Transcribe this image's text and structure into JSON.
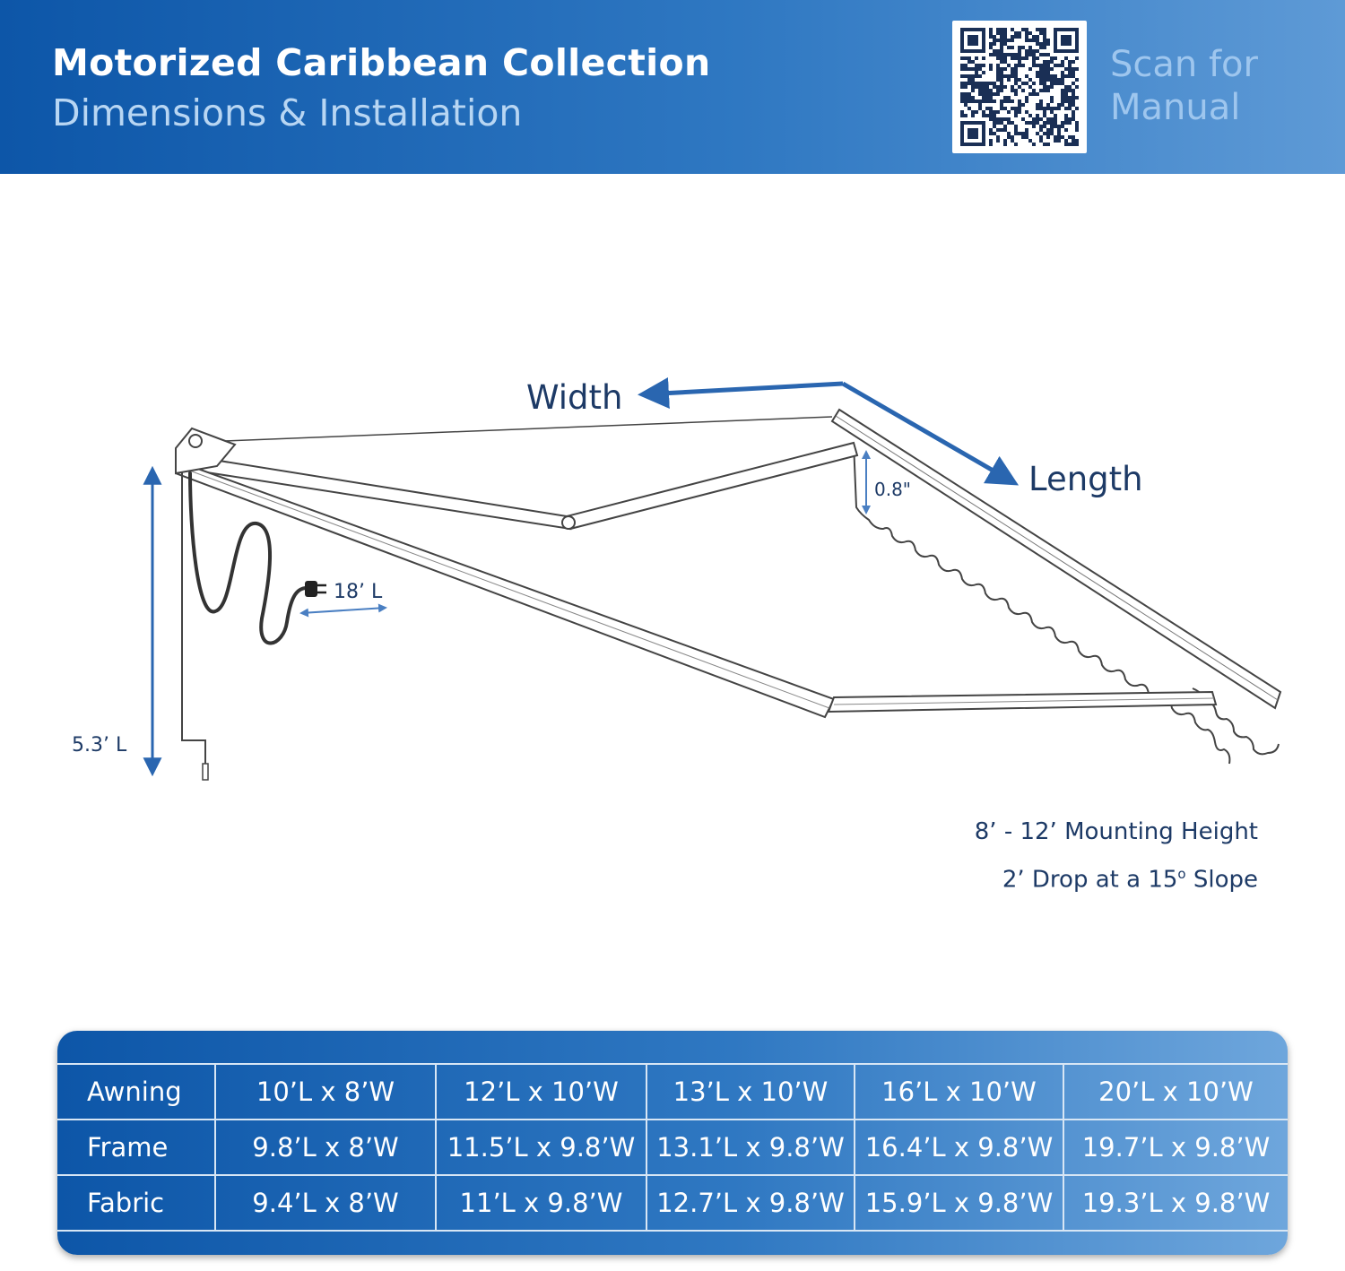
{
  "header": {
    "title": "Motorized Caribbean Collection",
    "subtitle": "Dimensions & Installation",
    "qr_label_line1": "Scan for",
    "qr_label_line2": "Manual",
    "colors": {
      "header_start": "#0d56a8",
      "header_end": "#5e9ad6"
    }
  },
  "diagram": {
    "width_label": "Width",
    "length_label": "Length",
    "valance_label": "0.8\"",
    "cord_label": "18’ L",
    "crank_label": "5.3’ L",
    "arrow_color": "#2a66b0"
  },
  "notes": {
    "mounting_height": "8’ - 12’ Mounting Height",
    "drop_prefix": "2’ Drop at a 15",
    "drop_degree": "o",
    "drop_suffix": " Slope"
  },
  "table": {
    "rows": [
      {
        "label": "Awning",
        "values": [
          "10’L x 8’W",
          "12’L x 10’W",
          "13’L x 10’W",
          "16’L x 10’W",
          "20’L x 10’W"
        ]
      },
      {
        "label": "Frame",
        "values": [
          "9.8’L x 8’W",
          "11.5’L x 9.8’W",
          "13.1’L x 9.8’W",
          "16.4’L x 9.8’W",
          "19.7’L x 9.8’W"
        ]
      },
      {
        "label": "Fabric",
        "values": [
          "9.4’L x 8’W",
          "11’L x 9.8’W",
          "12.7’L x 9.8’W",
          "15.9’L x 9.8’W",
          "19.3’L x 9.8’W"
        ]
      }
    ]
  }
}
